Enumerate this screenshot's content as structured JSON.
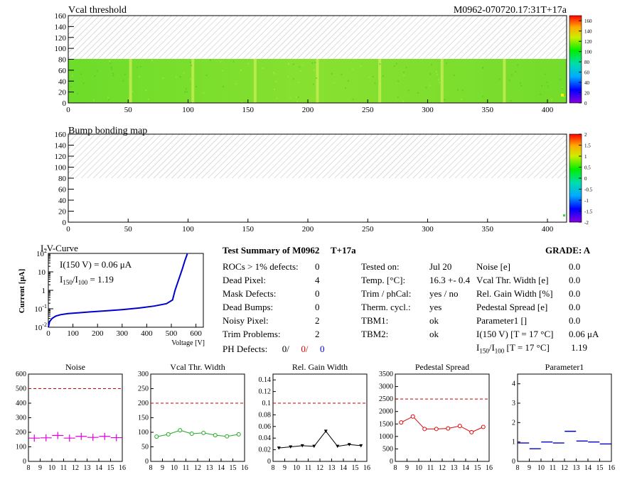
{
  "module_title": "M0962-070720.17:31T+17a",
  "map1": {
    "title": "Vcal threshold",
    "x_ticks": [
      "0",
      "50",
      "100",
      "150",
      "200",
      "250",
      "300",
      "350",
      "400"
    ],
    "y_ticks": [
      "0",
      "20",
      "40",
      "60",
      "80",
      "100",
      "120",
      "140",
      "160"
    ],
    "z_ticks": [
      "0",
      "20",
      "40",
      "60",
      "80",
      "100",
      "120",
      "140",
      "160"
    ],
    "xlim": [
      0,
      416
    ],
    "ylim": [
      0,
      160
    ],
    "zlim": [
      0,
      170
    ]
  },
  "map2": {
    "title": "Bump bonding map",
    "x_ticks": [
      "0",
      "50",
      "100",
      "150",
      "200",
      "250",
      "300",
      "350",
      "400"
    ],
    "y_ticks": [
      "0",
      "20",
      "40",
      "60",
      "80",
      "100",
      "120",
      "140",
      "160"
    ],
    "z_ticks": [
      "-2",
      "-1.5",
      "-1",
      "-0.5",
      "0",
      "0.5",
      "1",
      "1.5",
      "2"
    ],
    "xlim": [
      0,
      416
    ],
    "ylim": [
      0,
      160
    ],
    "zlim": [
      -2,
      2
    ]
  },
  "iv": {
    "title": "I-V-Curve",
    "ylabel": "Current [μA]",
    "xlabel": "Voltage [V]",
    "x_ticks": [
      "0",
      "100",
      "200",
      "300",
      "400",
      "500",
      "600"
    ],
    "y_ticks": [
      "10",
      "10",
      "1",
      "10",
      "10"
    ],
    "y_exps": [
      "2",
      "",
      "",
      "-1",
      "-2"
    ],
    "ann1": "I(150 V) = 0.06 μA",
    "ann2_a": "I",
    "ann2_b": "150",
    "ann2_c": "/I",
    "ann2_d": "100",
    "ann2_e": " =  1.19"
  },
  "summary": {
    "title": "Test Summary of M0962",
    "tag": "T+17a",
    "grade": "GRADE:  A",
    "left_labels": [
      "ROCs > 1% defects:",
      "Dead Pixel:",
      "Mask Defects:",
      "Dead Bumps:",
      "Noisy Pixel:",
      "Trim Problems:"
    ],
    "left_values": [
      "0",
      "4",
      "0",
      "0",
      "2",
      "2"
    ],
    "ph_label": "PH Defects:",
    "ph_values": [
      "0/",
      "0/",
      "0"
    ],
    "mid_labels": [
      "Tested on:",
      "Temp. [°C]:",
      "Trim / phCal:",
      "Therm. cycl.:",
      "TBM1:",
      "TBM2:"
    ],
    "mid_values": [
      "Jul 20",
      "16.3 +- 0.4",
      "yes / no",
      "yes",
      "ok",
      "ok"
    ],
    "right_labels": [
      "Noise [e]",
      "Vcal Thr. Width [e]",
      "Rel. Gain Width [%]",
      "Pedestal Spread [e]",
      "Parameter1 []",
      "I(150 V) [T = 17 °C]"
    ],
    "right_values": [
      "0.0",
      "0.0",
      "0.0",
      "0.0",
      "0.0",
      "0.06 μA"
    ],
    "ratio_label_a": "I",
    "ratio_label_b": "150",
    "ratio_label_c": "/I",
    "ratio_label_d": "100",
    "ratio_label_e": "  [T = 17 °C]",
    "ratio_value": "1.19"
  },
  "chart_data": [
    {
      "type": "heatmap",
      "title": "Vcal threshold",
      "xlim": [
        0,
        416
      ],
      "ylim": [
        0,
        160
      ],
      "zlim": [
        0,
        170
      ],
      "filled_rows": [
        0,
        80
      ],
      "typical_value": 80,
      "note_cols": [
        52,
        104,
        156,
        208,
        260,
        312,
        364
      ]
    },
    {
      "type": "heatmap",
      "title": "Bump bonding map",
      "xlim": [
        0,
        416
      ],
      "ylim": [
        0,
        160
      ],
      "zlim": [
        -2,
        2
      ],
      "filled_rows": [
        0,
        80
      ],
      "typical_value": 0,
      "hot_pixels": [
        [
          411,
          11
        ]
      ]
    },
    {
      "type": "line",
      "title": "I-V-Curve",
      "xlabel": "Voltage [V]",
      "ylabel": "Current [μA]",
      "log_y": true,
      "xlim": [
        0,
        630
      ],
      "ylim": [
        0.01,
        100
      ],
      "x": [
        0,
        5,
        15,
        30,
        50,
        80,
        120,
        170,
        230,
        300,
        370,
        430,
        480,
        505,
        515,
        525,
        535,
        545,
        555,
        565
      ],
      "y": [
        0.01,
        0.02,
        0.03,
        0.04,
        0.048,
        0.055,
        0.06,
        0.068,
        0.077,
        0.09,
        0.11,
        0.14,
        0.19,
        0.3,
        1.0,
        2.5,
        6,
        15,
        40,
        95
      ]
    },
    {
      "type": "scatter",
      "title": "Noise",
      "xlim": [
        8,
        16
      ],
      "ylim": [
        0,
        600
      ],
      "cut": 500,
      "x": [
        8.5,
        9.5,
        10.5,
        11.5,
        12.5,
        13.5,
        14.5,
        15.5
      ],
      "values": [
        160,
        162,
        178,
        160,
        172,
        165,
        172,
        163
      ],
      "color": "#dd00dd",
      "marker": "cross"
    },
    {
      "type": "line",
      "title": "Vcal Thr. Width",
      "xlim": [
        8,
        16
      ],
      "ylim": [
        0,
        300
      ],
      "cut": 200,
      "x": [
        8.5,
        9.5,
        10.5,
        11.5,
        12.5,
        13.5,
        14.5,
        15.5
      ],
      "values": [
        85,
        93,
        107,
        95,
        98,
        90,
        86,
        93
      ],
      "color": "#22aa22",
      "marker": "circle"
    },
    {
      "type": "line",
      "title": "Rel. Gain Width",
      "xlim": [
        8,
        16
      ],
      "ylim": [
        0,
        0.15
      ],
      "cut": 0.1,
      "x": [
        8.5,
        9.5,
        10.5,
        11.5,
        12.5,
        13.5,
        14.5,
        15.5
      ],
      "values": [
        0.023,
        0.025,
        0.027,
        0.026,
        0.052,
        0.026,
        0.029,
        0.027
      ],
      "color": "#000000",
      "marker": "triangle"
    },
    {
      "type": "line",
      "title": "Pedestal Spread",
      "xlim": [
        8,
        16
      ],
      "ylim": [
        0,
        3500
      ],
      "cut": 2500,
      "x": [
        8.5,
        9.5,
        10.5,
        11.5,
        12.5,
        13.5,
        14.5,
        15.5
      ],
      "values": [
        1560,
        1800,
        1300,
        1300,
        1320,
        1420,
        1170,
        1380
      ],
      "color": "#dd0000",
      "marker": "circle"
    },
    {
      "type": "scatter",
      "title": "Parameter1",
      "xlim": [
        8,
        16
      ],
      "ylim": [
        0,
        4.5
      ],
      "x": [
        8.5,
        9.5,
        10.5,
        11.5,
        12.5,
        13.5,
        14.5,
        15.5
      ],
      "values": [
        0.95,
        0.65,
        1.0,
        0.95,
        1.55,
        1.05,
        1.0,
        0.9
      ],
      "color": "#0000cc",
      "marker": "hbar"
    }
  ],
  "small_plots": {
    "x_ticks": [
      "8",
      "9",
      "10",
      "11",
      "12",
      "13",
      "14",
      "15",
      "16"
    ],
    "noise_y": [
      "0",
      "100",
      "200",
      "300",
      "400",
      "500",
      "600"
    ],
    "vcal_y": [
      "0",
      "50",
      "100",
      "150",
      "200",
      "250",
      "300"
    ],
    "gain_y": [
      "0",
      "0.02",
      "0.04",
      "0.06",
      "0.08",
      "0.1",
      "0.12",
      "0.14"
    ],
    "ped_y": [
      "0",
      "500",
      "1000",
      "1500",
      "2000",
      "2500",
      "3000",
      "3500"
    ],
    "par_y": [
      "0",
      "1",
      "2",
      "3",
      "4"
    ]
  }
}
